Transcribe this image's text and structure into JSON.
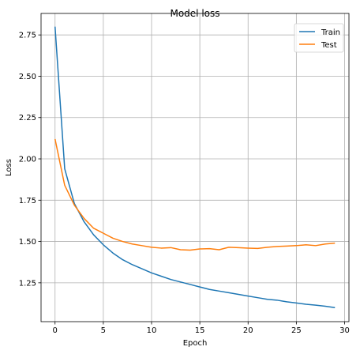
{
  "chart_data": {
    "type": "line",
    "title": "Model loss",
    "xlabel": "Epoch",
    "ylabel": "Loss",
    "xlim": [
      -1.45,
      30.45
    ],
    "ylim": [
      1.015,
      2.88
    ],
    "xticks": [
      0,
      5,
      10,
      15,
      20,
      25,
      30
    ],
    "yticks": [
      1.25,
      1.5,
      1.75,
      2.0,
      2.25,
      2.5,
      2.75
    ],
    "ytick_labels": [
      "1.25",
      "1.50",
      "1.75",
      "2.00",
      "2.25",
      "2.50",
      "2.75"
    ],
    "xtick_labels": [
      "0",
      "5",
      "10",
      "15",
      "20",
      "25",
      "30"
    ],
    "grid": true,
    "legend_position": "top-right",
    "x": [
      0,
      1,
      2,
      3,
      4,
      5,
      6,
      7,
      8,
      9,
      10,
      11,
      12,
      13,
      14,
      15,
      16,
      17,
      18,
      19,
      20,
      21,
      22,
      23,
      24,
      25,
      26,
      27,
      28,
      29
    ],
    "series": [
      {
        "name": "Train",
        "color": "#1f77b4",
        "values": [
          2.8,
          1.94,
          1.73,
          1.62,
          1.54,
          1.48,
          1.43,
          1.39,
          1.36,
          1.335,
          1.31,
          1.29,
          1.27,
          1.255,
          1.24,
          1.225,
          1.21,
          1.2,
          1.19,
          1.18,
          1.17,
          1.16,
          1.15,
          1.145,
          1.135,
          1.128,
          1.12,
          1.115,
          1.108,
          1.1
        ]
      },
      {
        "name": "Test",
        "color": "#ff7f0e",
        "values": [
          2.12,
          1.84,
          1.72,
          1.64,
          1.58,
          1.55,
          1.52,
          1.5,
          1.485,
          1.475,
          1.465,
          1.46,
          1.463,
          1.45,
          1.448,
          1.455,
          1.457,
          1.45,
          1.465,
          1.463,
          1.46,
          1.458,
          1.465,
          1.47,
          1.472,
          1.475,
          1.48,
          1.475,
          1.485,
          1.49
        ]
      }
    ]
  }
}
